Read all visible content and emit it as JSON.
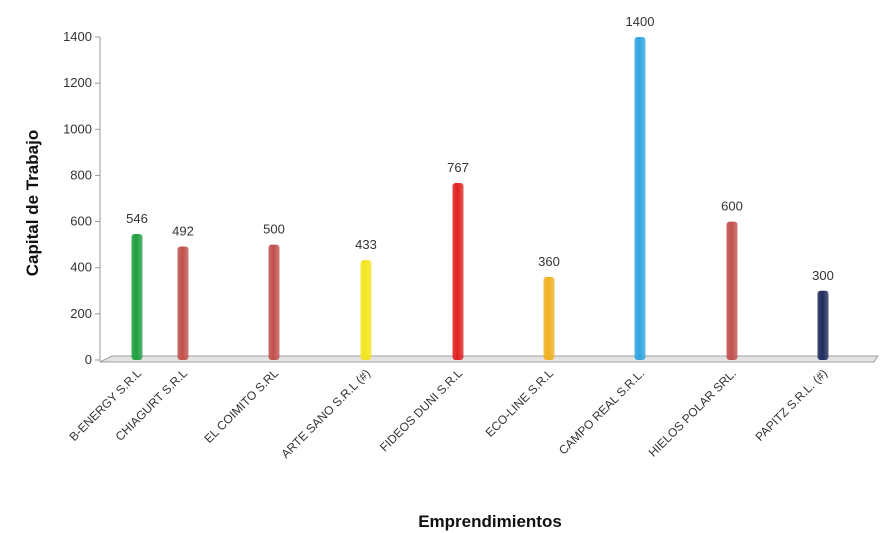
{
  "chart_data": {
    "type": "bar",
    "title": "",
    "xlabel": "Emprendimientos",
    "ylabel": "Capital de Trabajo",
    "ylim": [
      0,
      1400
    ],
    "yticks": [
      0,
      200,
      400,
      600,
      800,
      1000,
      1200,
      1400
    ],
    "grid": false,
    "legend": "none",
    "categories": [
      "B-ENERGY S.R.L",
      "CHIAGURT S.R.L",
      "EL COIMITO S.RL",
      "ARTE SANO S.R.L (#)",
      "FIDEOS DUNI S.R.L",
      "ECO-LINE S.R.L",
      "CAMPO REAL S.R.L.",
      "HIELOS POLAR SRL.",
      "PAPITZ S.R.L. (#)"
    ],
    "values": [
      546,
      492,
      500,
      433,
      767,
      360,
      1400,
      600,
      300
    ],
    "data_labels": [
      "546",
      "492",
      "500",
      "433",
      "767",
      "360",
      "1400",
      "600",
      "300"
    ],
    "colors": [
      "#1e9e3c",
      "#c0504d",
      "#c0504d",
      "#f2e51c",
      "#e02020",
      "#f0b020",
      "#2fa5e0",
      "#c0504d",
      "#1f2a5c"
    ]
  }
}
